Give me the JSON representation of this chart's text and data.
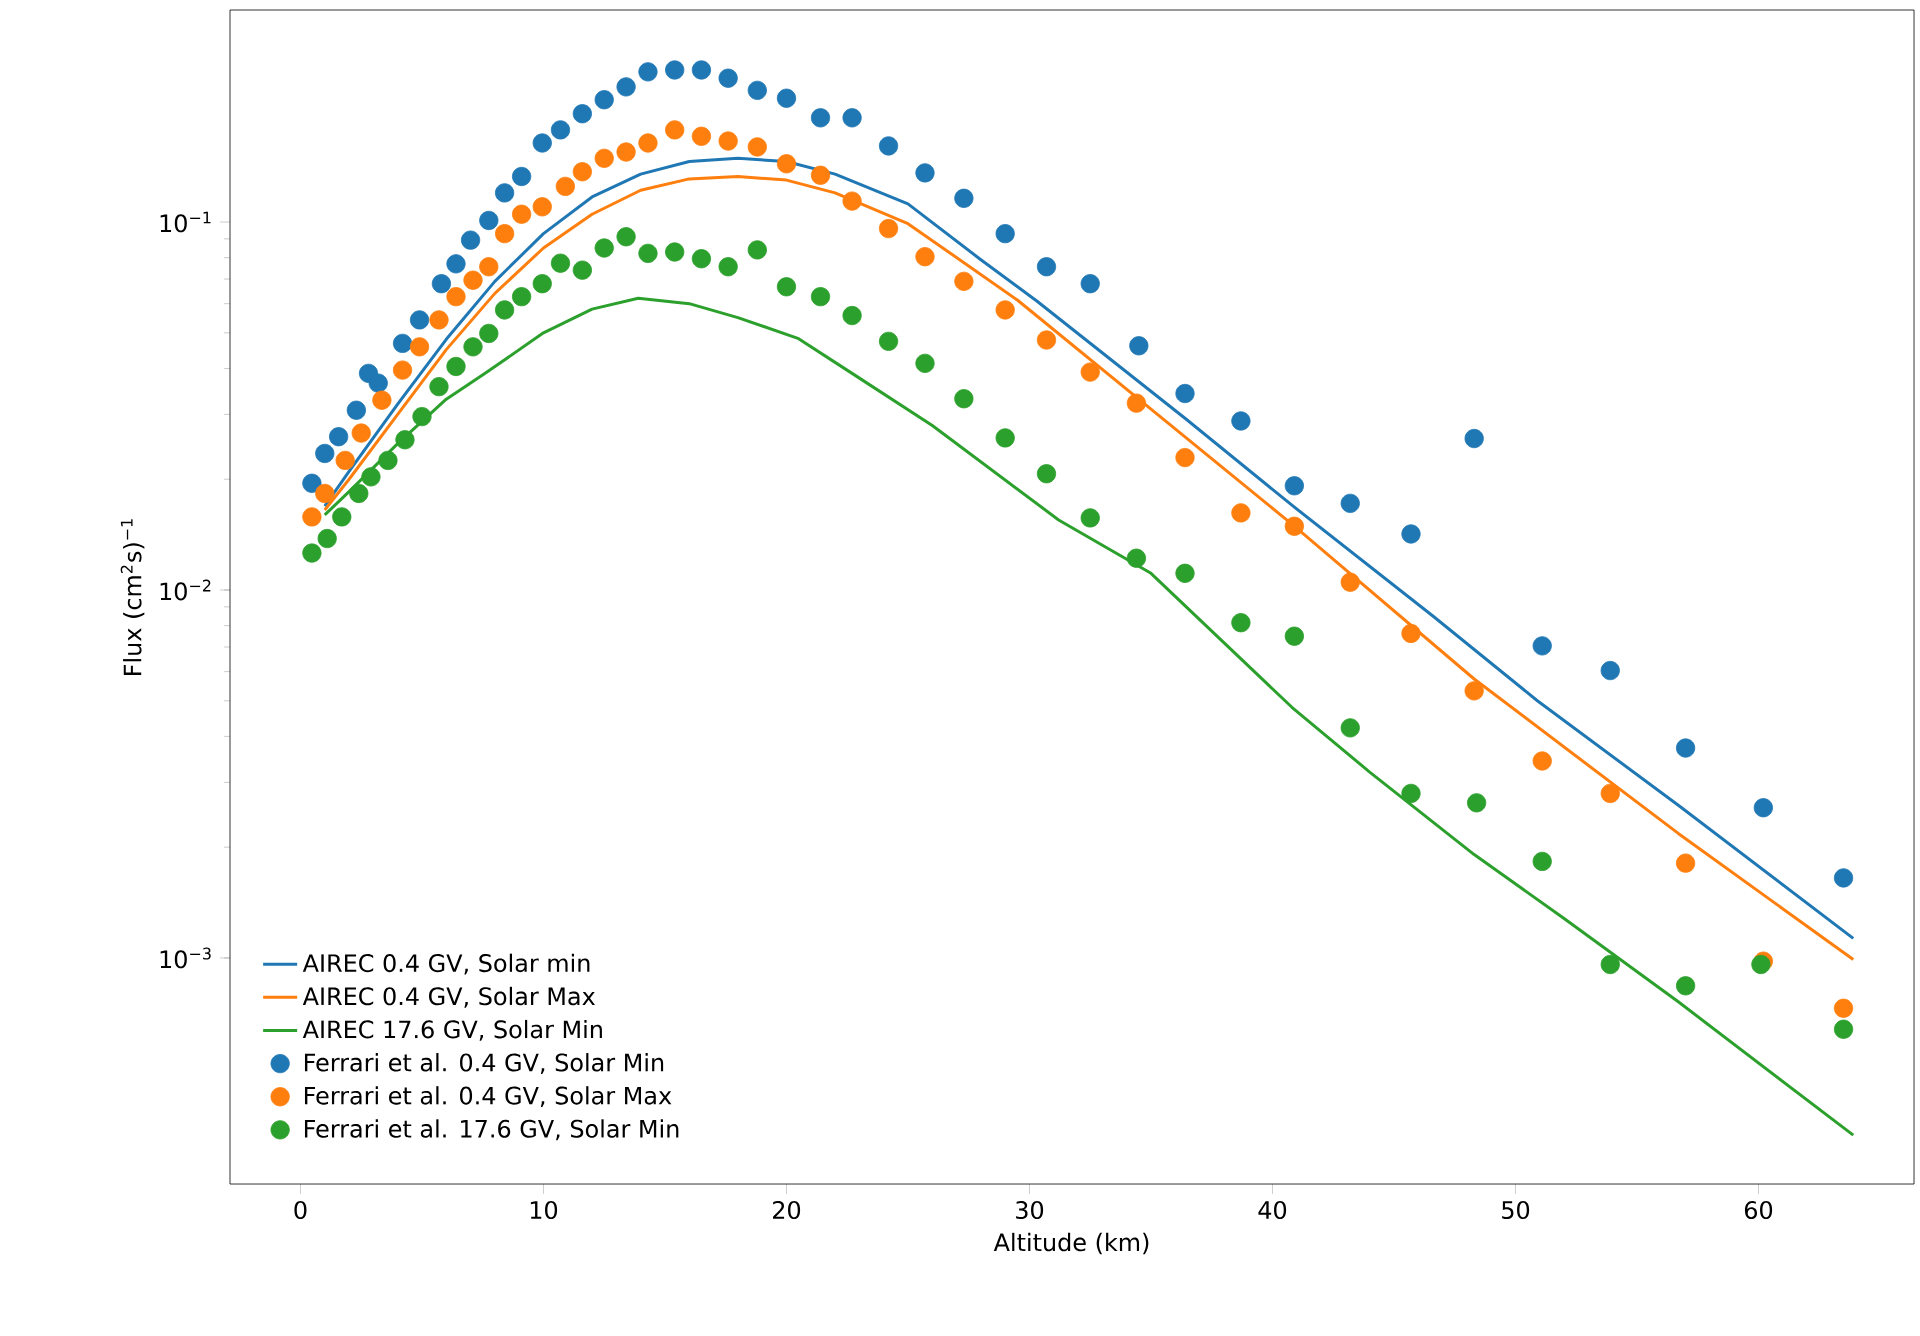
{
  "chart_data": {
    "type": "scatter",
    "xlabel": "Altitude (km)",
    "ylabel": "Flux (cm$^{2}$s)$^{−1}$",
    "log": "y",
    "legend": "bottom left",
    "xlim": [
      -2.9,
      66.4
    ],
    "ylim": [
      0.000243,
      0.377
    ],
    "xticks": [
      0,
      10,
      20,
      30,
      40,
      50,
      60
    ],
    "yticks": [
      {
        "value": 0.001,
        "label": "10$^{−3}$"
      },
      {
        "value": 0.01,
        "label": "10$^{−2}$"
      },
      {
        "value": 0.1,
        "label": "10$^{−1}$"
      }
    ],
    "series": [
      {
        "name": "AIREC 0.4 GV, Solar min",
        "type": "line",
        "marker": "none",
        "color": "#1f77b4",
        "x": [
          1,
          2,
          4,
          6,
          8,
          10,
          12,
          14,
          16,
          18,
          20,
          22,
          25,
          28,
          30.3,
          36.4,
          40.8,
          46.6,
          50.9,
          56.7,
          63.9
        ],
        "values": [
          0.0169,
          0.021,
          0.032,
          0.048,
          0.069,
          0.093,
          0.117,
          0.135,
          0.146,
          0.149,
          0.146,
          0.135,
          0.112,
          0.079,
          0.061,
          0.0293,
          0.017,
          0.0085,
          0.005,
          0.0026,
          0.00113
        ]
      },
      {
        "name": "AIREC 0.4 GV, Solar Max",
        "type": "line",
        "marker": "none",
        "color": "#ff7f0e",
        "x": [
          1,
          2,
          4,
          6,
          8,
          10,
          12,
          14,
          16,
          18,
          20,
          22,
          25,
          29.5,
          35,
          40.8,
          48.3,
          56.7,
          63.9
        ],
        "values": [
          0.0165,
          0.02,
          0.03,
          0.045,
          0.064,
          0.085,
          0.105,
          0.122,
          0.131,
          0.133,
          0.13,
          0.12,
          0.099,
          0.0614,
          0.031,
          0.0151,
          0.00573,
          0.00218,
          0.00099
        ]
      },
      {
        "name": "AIREC 17.6 GV, Solar Min",
        "type": "line",
        "marker": "none",
        "color": "#2ca02c",
        "x": [
          1,
          2,
          4,
          6,
          7.6,
          10,
          12,
          13.9,
          16,
          18,
          20.5,
          22.7,
          26,
          31.2,
          35,
          40.8,
          44,
          48.3,
          52,
          56.7,
          63.9
        ],
        "values": [
          0.016,
          0.0185,
          0.025,
          0.033,
          0.0388,
          0.05,
          0.058,
          0.0621,
          0.06,
          0.055,
          0.0482,
          0.0388,
          0.028,
          0.0155,
          0.0111,
          0.0048,
          0.0032,
          0.00191,
          0.00128,
          0.00076,
          0.00033
        ]
      },
      {
        "name": "Ferrari et al. 0.4 GV, Solar Min",
        "color": "#1f77b4",
        "x": [
          0.47,
          1.0,
          1.57,
          2.3,
          2.8,
          3.2,
          4.2,
          4.9,
          5.8,
          6.4,
          7.0,
          7.75,
          8.4,
          9.1,
          9.95,
          10.7,
          11.6,
          12.5,
          13.4,
          14.3,
          15.4,
          16.5,
          17.6,
          18.8,
          20.0,
          21.4,
          22.7,
          24.2,
          25.7,
          27.3,
          29.0,
          30.7,
          32.5,
          34.5,
          36.4,
          38.7,
          40.9,
          43.2,
          45.7,
          48.3,
          51.1,
          53.9,
          57.0,
          60.2,
          63.5
        ],
        "values": [
          0.0195,
          0.0235,
          0.0261,
          0.0308,
          0.0388,
          0.0365,
          0.0468,
          0.0542,
          0.068,
          0.077,
          0.0893,
          0.101,
          0.12,
          0.133,
          0.164,
          0.178,
          0.197,
          0.215,
          0.233,
          0.256,
          0.259,
          0.259,
          0.246,
          0.228,
          0.217,
          0.192,
          0.192,
          0.161,
          0.136,
          0.116,
          0.093,
          0.0756,
          0.068,
          0.0461,
          0.0342,
          0.0288,
          0.0192,
          0.0172,
          0.0142,
          0.0258,
          0.00705,
          0.00604,
          0.00372,
          0.00256,
          0.00165
        ]
      },
      {
        "name": "Ferrari et al. 0.4 GV, Solar Max",
        "color": "#ff7f0e",
        "x": [
          0.47,
          1.0,
          1.84,
          2.5,
          3.35,
          4.2,
          4.9,
          5.7,
          6.4,
          7.1,
          7.75,
          8.4,
          9.1,
          9.95,
          10.9,
          11.6,
          12.5,
          13.4,
          14.3,
          15.4,
          16.5,
          17.6,
          18.8,
          20.0,
          21.4,
          22.7,
          24.2,
          25.7,
          27.3,
          29.0,
          30.7,
          32.5,
          34.4,
          36.4,
          38.7,
          40.9,
          43.2,
          45.7,
          48.3,
          51.1,
          53.9,
          57.0,
          60.2,
          63.5
        ],
        "values": [
          0.0158,
          0.0183,
          0.0225,
          0.0267,
          0.0328,
          0.0396,
          0.0458,
          0.0542,
          0.0627,
          0.0695,
          0.0756,
          0.093,
          0.105,
          0.11,
          0.125,
          0.137,
          0.149,
          0.155,
          0.164,
          0.178,
          0.171,
          0.166,
          0.16,
          0.144,
          0.134,
          0.114,
          0.096,
          0.0805,
          0.069,
          0.0577,
          0.0478,
          0.0391,
          0.0322,
          0.0229,
          0.0162,
          0.0149,
          0.0105,
          0.00762,
          0.00532,
          0.00343,
          0.0028,
          0.00181,
          0.00098,
          0.00073
        ]
      },
      {
        "name": "Ferrari et al. 17.6 GV, Solar Min",
        "color": "#2ca02c",
        "x": [
          0.47,
          1.1,
          1.7,
          2.4,
          2.9,
          3.6,
          4.3,
          5.0,
          5.7,
          6.4,
          7.1,
          7.75,
          8.4,
          9.1,
          9.95,
          10.7,
          11.6,
          12.5,
          13.4,
          14.3,
          15.4,
          16.5,
          17.6,
          18.8,
          20.0,
          21.4,
          22.7,
          24.2,
          25.7,
          27.3,
          29.0,
          30.7,
          32.5,
          34.4,
          36.4,
          38.7,
          40.9,
          43.2,
          45.7,
          48.4,
          51.1,
          53.9,
          57.0,
          60.1,
          63.5
        ],
        "values": [
          0.0126,
          0.0138,
          0.0158,
          0.0183,
          0.0203,
          0.0225,
          0.0256,
          0.0296,
          0.0357,
          0.0405,
          0.0458,
          0.0498,
          0.0577,
          0.0627,
          0.068,
          0.0773,
          0.074,
          0.085,
          0.0912,
          0.0822,
          0.0829,
          0.0795,
          0.0756,
          0.084,
          0.0667,
          0.0627,
          0.0557,
          0.0474,
          0.0413,
          0.0331,
          0.0259,
          0.0207,
          0.0157,
          0.0122,
          0.0111,
          0.00815,
          0.00749,
          0.00422,
          0.0028,
          0.00264,
          0.00183,
          0.00096,
          0.00084,
          0.00096,
          0.00064
        ]
      }
    ]
  }
}
